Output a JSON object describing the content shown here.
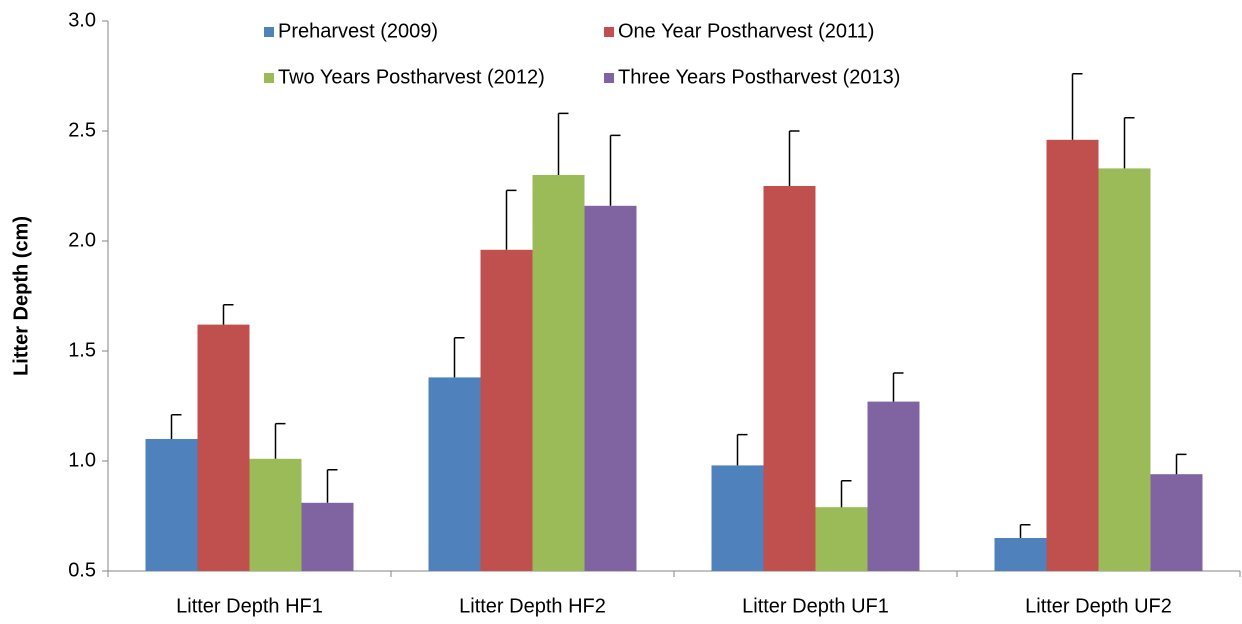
{
  "chart_data": {
    "type": "bar",
    "y_label": "Litter Depth (cm)",
    "categories": [
      "Litter Depth HF1",
      "Litter Depth HF2",
      "Litter Depth UF1",
      "Litter Depth UF2"
    ],
    "series": [
      {
        "name": "Preharvest (2009)",
        "color": "#4f81bd",
        "values": [
          1.1,
          1.38,
          0.98,
          0.65
        ],
        "errors": [
          0.11,
          0.18,
          0.14,
          0.06
        ]
      },
      {
        "name": "One Year Postharvest (2011)",
        "color": "#c0504d",
        "values": [
          1.62,
          1.96,
          2.25,
          2.46
        ],
        "errors": [
          0.09,
          0.27,
          0.25,
          0.3
        ]
      },
      {
        "name": "Two Years Postharvest (2012)",
        "color": "#9bbb59",
        "values": [
          1.01,
          2.3,
          0.79,
          2.33
        ],
        "errors": [
          0.16,
          0.28,
          0.12,
          0.23
        ]
      },
      {
        "name": "Three Years Postharvest (2013)",
        "color": "#8064a2",
        "values": [
          0.81,
          2.16,
          1.27,
          0.94
        ],
        "errors": [
          0.15,
          0.32,
          0.13,
          0.09
        ]
      }
    ],
    "ylim": [
      0.5,
      3.0
    ],
    "yticks": [
      0.5,
      {
        "value": 1,
        "label": "1.0"
      },
      1.5,
      {
        "value": 2,
        "label": "2.0"
      },
      2.5,
      {
        "value": 3,
        "label": "3.0"
      }
    ],
    "legend_position": "top"
  }
}
